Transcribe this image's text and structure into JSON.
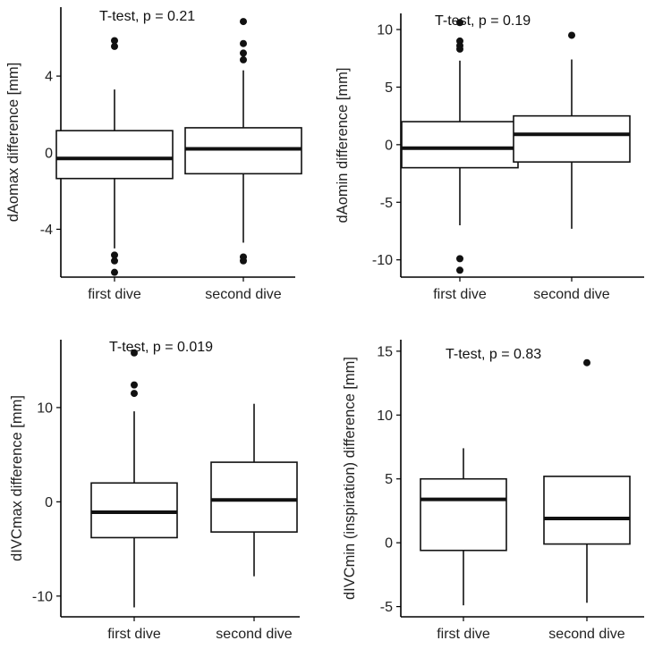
{
  "chart_data": [
    {
      "type": "boxplot",
      "ylabel": "dAomax difference [mm]",
      "annotation": "T-test, p = 0.21",
      "categories": [
        "first dive",
        "second dive"
      ],
      "yticks": [
        -4,
        0,
        4
      ],
      "ylim": [
        -6.5,
        7.6
      ],
      "boxes": [
        {
          "category": "first dive",
          "whisker_low": -5.0,
          "q1": -1.35,
          "median": -0.3,
          "q3": 1.15,
          "whisker_high": 3.3,
          "outliers": [
            5.85,
            5.55,
            -5.35,
            -5.65,
            -6.25
          ]
        },
        {
          "category": "second dive",
          "whisker_low": -4.7,
          "q1": -1.1,
          "median": 0.2,
          "q3": 1.3,
          "whisker_high": 4.3,
          "outliers": [
            6.85,
            5.7,
            5.2,
            4.85,
            -5.45,
            -5.65
          ]
        }
      ]
    },
    {
      "type": "boxplot",
      "ylabel": "dAomin difference [mm]",
      "annotation": "T-test, p = 0.19",
      "categories": [
        "first dive",
        "second dive"
      ],
      "yticks": [
        -10,
        -5,
        0,
        5,
        10
      ],
      "ylim": [
        -11.5,
        11.4
      ],
      "boxes": [
        {
          "category": "first dive",
          "whisker_low": -7.0,
          "q1": -2.0,
          "median": -0.3,
          "q3": 2.0,
          "whisker_high": 7.3,
          "outliers": [
            10.6,
            9.0,
            8.6,
            8.3,
            -9.9,
            -10.9
          ]
        },
        {
          "category": "second dive",
          "whisker_low": -7.3,
          "q1": -1.5,
          "median": 0.9,
          "q3": 2.5,
          "whisker_high": 7.4,
          "outliers": [
            9.5
          ]
        }
      ]
    },
    {
      "type": "boxplot",
      "ylabel": "dIVCmax difference [mm]",
      "annotation": "T-test, p = 0.019",
      "categories": [
        "first dive",
        "second dive"
      ],
      "yticks": [
        -10,
        0,
        10
      ],
      "ylim": [
        -12.2,
        17.2
      ],
      "boxes": [
        {
          "category": "first dive",
          "whisker_low": -11.2,
          "q1": -3.8,
          "median": -1.1,
          "q3": 2.0,
          "whisker_high": 9.6,
          "outliers": [
            15.8,
            12.4,
            11.5
          ]
        },
        {
          "category": "second dive",
          "whisker_low": -7.9,
          "q1": -3.2,
          "median": 0.2,
          "q3": 4.2,
          "whisker_high": 10.4,
          "outliers": []
        }
      ]
    },
    {
      "type": "boxplot",
      "ylabel": "dIVCmin (inspiration) difference [mm]",
      "annotation": "T-test, p = 0.83",
      "categories": [
        "first dive",
        "second dive"
      ],
      "yticks": [
        -5,
        0,
        5,
        10,
        15
      ],
      "ylim": [
        -5.8,
        15.9
      ],
      "boxes": [
        {
          "category": "first dive",
          "whisker_low": -4.9,
          "q1": -0.6,
          "median": 3.4,
          "q3": 5.0,
          "whisker_high": 7.4,
          "outliers": []
        },
        {
          "category": "second dive",
          "whisker_low": -4.7,
          "q1": -0.1,
          "median": 1.9,
          "q3": 5.2,
          "whisker_high": 5.2,
          "outliers": [
            14.1
          ]
        }
      ]
    }
  ]
}
